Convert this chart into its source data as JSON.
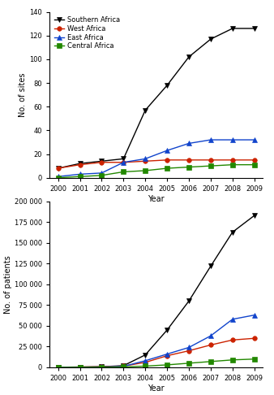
{
  "years": [
    2000,
    2001,
    2002,
    2003,
    2004,
    2005,
    2006,
    2007,
    2008,
    2009
  ],
  "sites": {
    "Southern Africa": [
      8,
      12,
      14,
      16,
      57,
      78,
      102,
      117,
      126,
      126
    ],
    "West Africa": [
      8,
      11,
      13,
      13,
      14,
      15,
      15,
      15,
      15,
      15
    ],
    "East Africa": [
      1,
      3,
      4,
      13,
      16,
      23,
      29,
      32,
      32,
      32
    ],
    "Central Africa": [
      0,
      1,
      2,
      5,
      6,
      8,
      9,
      10,
      11,
      11
    ]
  },
  "patients": {
    "Southern Africa": [
      200,
      400,
      800,
      2000,
      15000,
      45000,
      80000,
      122000,
      163000,
      183000
    ],
    "West Africa": [
      200,
      400,
      700,
      1500,
      6000,
      14000,
      20000,
      27000,
      33000,
      35000
    ],
    "East Africa": [
      100,
      200,
      500,
      1200,
      8000,
      16000,
      24000,
      38000,
      58000,
      63000
    ],
    "Central Africa": [
      50,
      100,
      200,
      500,
      1500,
      3000,
      5000,
      7000,
      9000,
      10000
    ]
  },
  "colors": {
    "Southern Africa": "#000000",
    "West Africa": "#cc2200",
    "East Africa": "#1144cc",
    "Central Africa": "#228800"
  },
  "markers": {
    "Southern Africa": "v",
    "West Africa": "o",
    "East Africa": "^",
    "Central Africa": "s"
  },
  "panel_a": {
    "ylabel": "No. of sites",
    "ylim": [
      0,
      140
    ],
    "yticks": [
      0,
      20,
      40,
      60,
      80,
      100,
      120,
      140
    ]
  },
  "panel_b": {
    "ylabel": "No. of patients",
    "ylim": [
      0,
      200000
    ],
    "yticks": [
      0,
      25000,
      50000,
      75000,
      100000,
      125000,
      150000,
      175000,
      200000
    ]
  },
  "xlabel": "Year",
  "legend_order": [
    "Southern Africa",
    "West Africa",
    "East Africa",
    "Central Africa"
  ],
  "markersize": 4,
  "linewidth": 1.0,
  "tick_fontsize": 6,
  "label_fontsize": 7,
  "legend_fontsize": 6
}
